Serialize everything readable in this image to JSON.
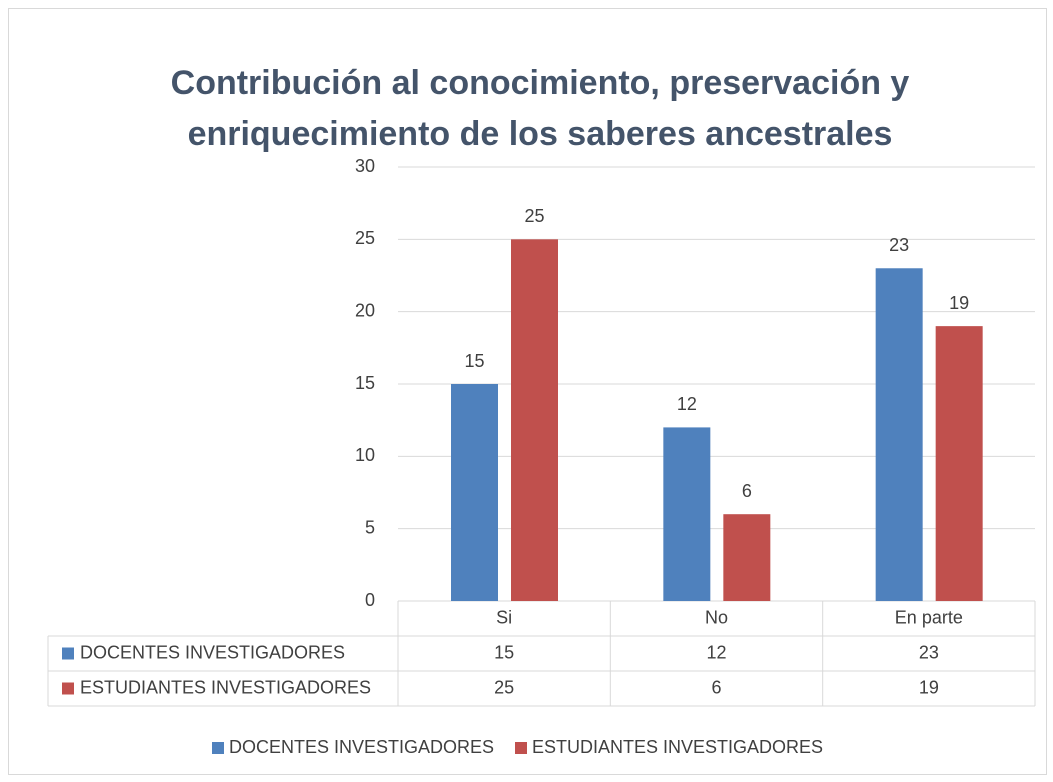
{
  "chart_data": {
    "type": "bar",
    "title": "Contribución al conocimiento, preservación y enriquecimiento de los saberes ancestrales",
    "categories": [
      "Si",
      "No",
      "En parte"
    ],
    "series": [
      {
        "name": "DOCENTES INVESTIGADORES",
        "color": "#4f81bd",
        "values": [
          15,
          12,
          23
        ]
      },
      {
        "name": "ESTUDIANTES INVESTIGADORES",
        "color": "#c0504d",
        "values": [
          25,
          6,
          19
        ]
      }
    ],
    "ylim": [
      0,
      30
    ],
    "yticks": [
      0,
      5,
      10,
      15,
      20,
      25,
      30
    ],
    "grid": true,
    "legend": "bottom"
  }
}
